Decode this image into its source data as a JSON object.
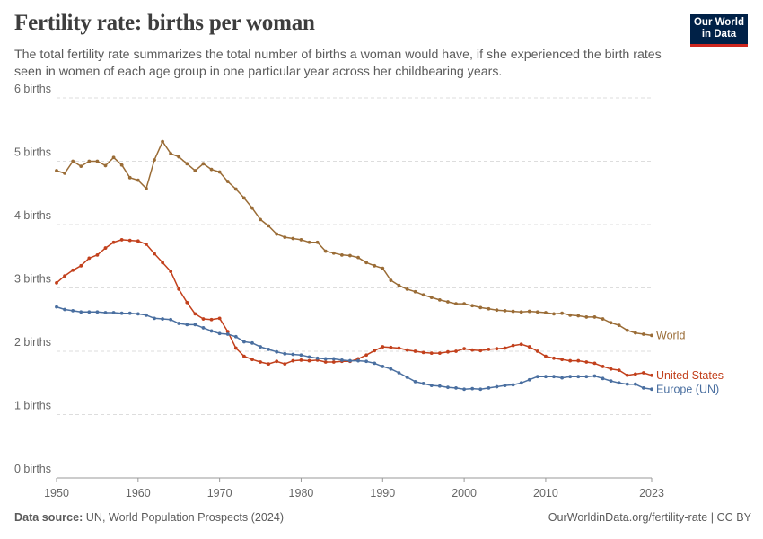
{
  "title": "Fertility rate: births per woman",
  "subtitle": "The total fertility rate summarizes the total number of births a woman would have, if she experienced the birth rates seen in women of each age group in one particular year across her childbearing years.",
  "logo": {
    "line1": "Our World",
    "line2": "in Data"
  },
  "footer": {
    "source_label": "Data source:",
    "source_text": "UN, World Population Prospects (2024)",
    "credit": "OurWorldinData.org/fertility-rate | CC BY"
  },
  "colors": {
    "World": "#9a6c36",
    "United States": "#c2401c",
    "Europe (UN)": "#4a6fa0",
    "grid": "#dddddd",
    "logo_bg": "#002147",
    "logo_accent": "#ce261e"
  },
  "chart_data": {
    "type": "line",
    "x": [
      1950,
      1951,
      1952,
      1953,
      1954,
      1955,
      1956,
      1957,
      1958,
      1959,
      1960,
      1961,
      1962,
      1963,
      1964,
      1965,
      1966,
      1967,
      1968,
      1969,
      1970,
      1971,
      1972,
      1973,
      1974,
      1975,
      1976,
      1977,
      1978,
      1979,
      1980,
      1981,
      1982,
      1983,
      1984,
      1985,
      1986,
      1987,
      1988,
      1989,
      1990,
      1991,
      1992,
      1993,
      1994,
      1995,
      1996,
      1997,
      1998,
      1999,
      2000,
      2001,
      2002,
      2003,
      2004,
      2005,
      2006,
      2007,
      2008,
      2009,
      2010,
      2011,
      2012,
      2013,
      2014,
      2015,
      2016,
      2017,
      2018,
      2019,
      2020,
      2021,
      2022,
      2023
    ],
    "x_ticks": [
      "1950",
      "1960",
      "1970",
      "1980",
      "1990",
      "2000",
      "2010",
      "2023"
    ],
    "y_ticks": [
      "0 births",
      "1 births",
      "2 births",
      "3 births",
      "4 births",
      "5 births",
      "6 births"
    ],
    "ylim": [
      0,
      6
    ],
    "xlim": [
      1950,
      2023
    ],
    "grid": "horizontal dashed",
    "legend": "labels at line ends",
    "series": [
      {
        "name": "World",
        "values": [
          4.85,
          4.81,
          5.0,
          4.92,
          5.0,
          5.0,
          4.93,
          5.06,
          4.94,
          4.74,
          4.7,
          4.57,
          5.02,
          5.31,
          5.12,
          5.07,
          4.96,
          4.85,
          4.96,
          4.87,
          4.83,
          4.68,
          4.56,
          4.42,
          4.26,
          4.08,
          3.98,
          3.85,
          3.8,
          3.78,
          3.76,
          3.72,
          3.72,
          3.58,
          3.55,
          3.52,
          3.51,
          3.48,
          3.4,
          3.35,
          3.31,
          3.12,
          3.04,
          2.98,
          2.94,
          2.89,
          2.85,
          2.81,
          2.78,
          2.75,
          2.75,
          2.72,
          2.69,
          2.67,
          2.65,
          2.64,
          2.63,
          2.62,
          2.63,
          2.62,
          2.61,
          2.59,
          2.6,
          2.57,
          2.56,
          2.54,
          2.54,
          2.51,
          2.45,
          2.41,
          2.33,
          2.29,
          2.27,
          2.25
        ]
      },
      {
        "name": "United States",
        "values": [
          3.08,
          3.19,
          3.28,
          3.35,
          3.47,
          3.52,
          3.63,
          3.72,
          3.76,
          3.75,
          3.74,
          3.69,
          3.54,
          3.4,
          3.26,
          2.98,
          2.77,
          2.59,
          2.51,
          2.5,
          2.52,
          2.31,
          2.05,
          1.92,
          1.87,
          1.83,
          1.8,
          1.84,
          1.8,
          1.85,
          1.86,
          1.85,
          1.86,
          1.83,
          1.83,
          1.84,
          1.84,
          1.88,
          1.94,
          2.01,
          2.07,
          2.06,
          2.05,
          2.02,
          2.0,
          1.98,
          1.97,
          1.97,
          1.99,
          2.0,
          2.04,
          2.02,
          2.01,
          2.03,
          2.04,
          2.05,
          2.09,
          2.11,
          2.07,
          2.0,
          1.92,
          1.89,
          1.87,
          1.85,
          1.85,
          1.83,
          1.81,
          1.76,
          1.72,
          1.7,
          1.62,
          1.64,
          1.66,
          1.62
        ]
      },
      {
        "name": "Europe (UN)",
        "values": [
          2.7,
          2.66,
          2.64,
          2.62,
          2.62,
          2.62,
          2.61,
          2.61,
          2.6,
          2.6,
          2.59,
          2.57,
          2.52,
          2.51,
          2.5,
          2.44,
          2.42,
          2.42,
          2.37,
          2.32,
          2.28,
          2.27,
          2.23,
          2.15,
          2.13,
          2.07,
          2.03,
          1.99,
          1.96,
          1.95,
          1.94,
          1.91,
          1.89,
          1.88,
          1.88,
          1.86,
          1.85,
          1.85,
          1.84,
          1.81,
          1.76,
          1.72,
          1.66,
          1.59,
          1.52,
          1.49,
          1.46,
          1.45,
          1.43,
          1.42,
          1.4,
          1.41,
          1.4,
          1.42,
          1.44,
          1.46,
          1.47,
          1.5,
          1.55,
          1.6,
          1.6,
          1.6,
          1.58,
          1.6,
          1.6,
          1.6,
          1.61,
          1.57,
          1.53,
          1.5,
          1.48,
          1.48,
          1.42,
          1.4
        ]
      }
    ]
  }
}
